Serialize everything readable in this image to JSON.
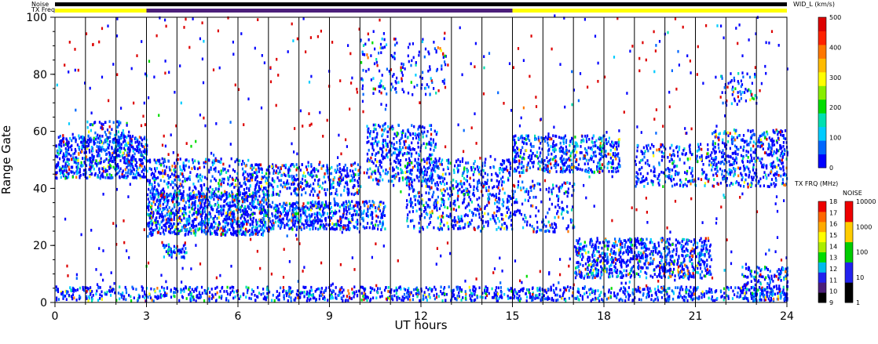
{
  "chart_data": {
    "type": "heatmap",
    "title": "",
    "xlabel": "UT hours",
    "ylabel": "Range Gate",
    "xlim": [
      0,
      24
    ],
    "ylim": [
      0,
      100
    ],
    "x_ticks": [
      0,
      3,
      6,
      9,
      12,
      15,
      18,
      21,
      24
    ],
    "y_ticks": [
      0,
      20,
      40,
      60,
      80,
      100
    ],
    "vertical_lines_every_hours": 1,
    "top_bars": {
      "noise_label": "Noise",
      "txfreq_label": "TX Freq",
      "noise_color": "#000000",
      "txfreq_segments": [
        {
          "start": 0,
          "end": 3,
          "color": "#ffff00"
        },
        {
          "start": 3,
          "end": 15,
          "color": "#4b1e7a"
        },
        {
          "start": 15,
          "end": 24,
          "color": "#ffff00"
        }
      ]
    },
    "scatter_regions": [
      {
        "x0": 0.0,
        "x1": 3.0,
        "y0": 43,
        "y1": 58,
        "density": 0.85
      },
      {
        "x0": 1.0,
        "x1": 2.4,
        "y0": 55,
        "y1": 63,
        "density": 0.35
      },
      {
        "x0": 3.0,
        "x1": 7.0,
        "y0": 23,
        "y1": 38,
        "density": 0.9
      },
      {
        "x0": 3.0,
        "x1": 6.5,
        "y0": 36,
        "y1": 50,
        "density": 0.45
      },
      {
        "x0": 3.5,
        "x1": 4.3,
        "y0": 15,
        "y1": 20,
        "density": 0.7
      },
      {
        "x0": 7.0,
        "x1": 10.8,
        "y0": 25,
        "y1": 35,
        "density": 0.8
      },
      {
        "x0": 6.5,
        "x1": 10.0,
        "y0": 37,
        "y1": 48,
        "density": 0.55
      },
      {
        "x0": 10.2,
        "x1": 12.5,
        "y0": 42,
        "y1": 62,
        "density": 0.45
      },
      {
        "x0": 11.5,
        "x1": 15.0,
        "y0": 25,
        "y1": 50,
        "density": 0.4
      },
      {
        "x0": 15.0,
        "x1": 18.5,
        "y0": 45,
        "y1": 58,
        "density": 0.6
      },
      {
        "x0": 15.0,
        "x1": 17.0,
        "y0": 24,
        "y1": 42,
        "density": 0.25
      },
      {
        "x0": 17.0,
        "x1": 21.5,
        "y0": 8,
        "y1": 22,
        "density": 0.7
      },
      {
        "x0": 19.0,
        "x1": 21.5,
        "y0": 40,
        "y1": 55,
        "density": 0.35
      },
      {
        "x0": 21.5,
        "x1": 24.0,
        "y0": 40,
        "y1": 60,
        "density": 0.5
      },
      {
        "x0": 21.8,
        "x1": 23.0,
        "y0": 68,
        "y1": 80,
        "density": 0.25
      },
      {
        "x0": 10.0,
        "x1": 12.8,
        "y0": 72,
        "y1": 92,
        "density": 0.15
      },
      {
        "x0": 0.0,
        "x1": 24.0,
        "y0": 0,
        "y1": 5,
        "density": 0.55
      },
      {
        "x0": 22.5,
        "x1": 24.0,
        "y0": 0,
        "y1": 12,
        "density": 0.6
      },
      {
        "x0": 0.0,
        "x1": 24.0,
        "y0": 5,
        "y1": 100,
        "density": 0.015
      }
    ],
    "colorbars": [
      {
        "title": "WID_L (km/s)",
        "min": 0,
        "max": 500,
        "ticks": [
          0,
          100,
          200,
          300,
          400,
          500
        ],
        "colors": [
          "#0000ff",
          "#0066ff",
          "#00ccff",
          "#00e0b0",
          "#00dd00",
          "#88ee00",
          "#ffff00",
          "#ffbb00",
          "#ff7700",
          "#ff2200",
          "#dd0000"
        ]
      },
      {
        "title": "TX FRQ (MHz)",
        "ticks": [
          9,
          10,
          11,
          12,
          13,
          14,
          15,
          16,
          17,
          18
        ],
        "colors": [
          "#000000",
          "#4b1e7a",
          "#2222ee",
          "#00bbee",
          "#00dd00",
          "#aaee00",
          "#ffff00",
          "#ffaa00",
          "#ff6600",
          "#ee0000"
        ]
      },
      {
        "title": "NOISE",
        "ticks": [
          1,
          10,
          100,
          1000,
          10000
        ],
        "colors": [
          "#000000",
          "#2222ee",
          "#00cc00",
          "#ffcc00",
          "#ee0000"
        ]
      }
    ]
  }
}
